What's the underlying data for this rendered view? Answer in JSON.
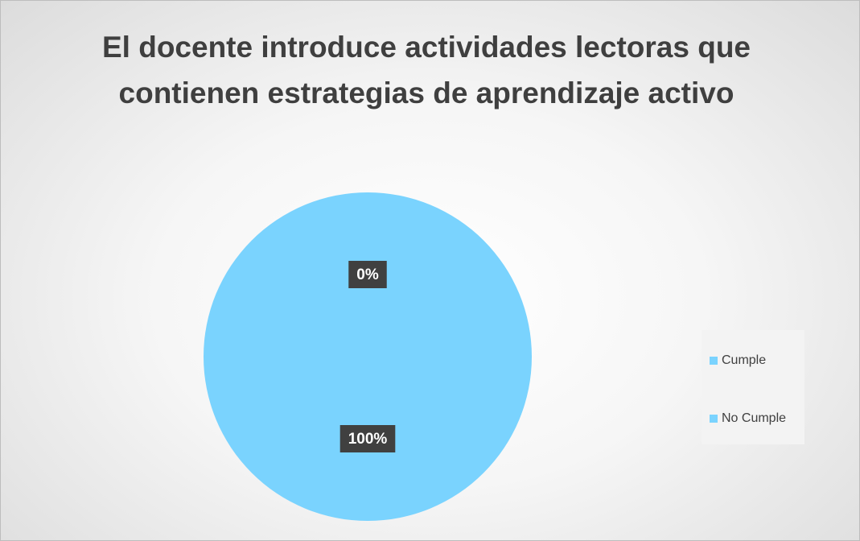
{
  "chart_data": {
    "type": "pie",
    "title": "El docente introduce actividades lectoras que contienen estrategias de aprendizaje activo",
    "categories": [
      "Cumple",
      "No Cumple"
    ],
    "values": [
      0,
      100
    ],
    "value_labels": [
      "0%",
      "100%"
    ],
    "colors": [
      "#7ad3fe",
      "#7ad3fe"
    ],
    "legend": "right"
  }
}
